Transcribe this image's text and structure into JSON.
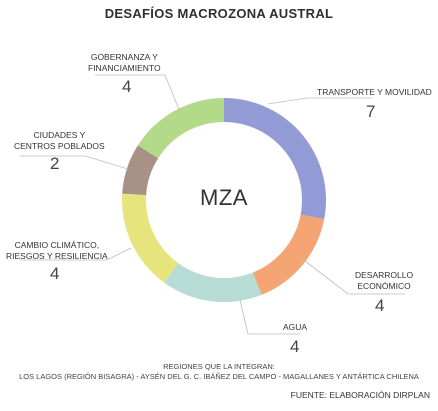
{
  "chart_data": {
    "type": "pie",
    "title": "DESAFÍOS MACROZONA AUSTRAL",
    "center_label": "MZA",
    "slices": [
      {
        "label": "TRANSPORTE Y MOVILIDAD",
        "value": 7,
        "color": "#929bd6"
      },
      {
        "label": "DESARROLLO ECONÓMICO",
        "value": 4,
        "color": "#f5a574"
      },
      {
        "label": "AGUA",
        "value": 4,
        "color": "#b7dcd6"
      },
      {
        "label": "CAMBIO CLIMÁTICO, RIESGOS Y RESILIENCIA",
        "value": 4,
        "color": "#e6e47d"
      },
      {
        "label": "CIUDADES Y CENTROS POBLADOS",
        "value": 2,
        "color": "#a89285"
      },
      {
        "label": "GOBERNANZA Y FINANCIAMIENTO",
        "value": 4,
        "color": "#b3da88"
      }
    ]
  },
  "labels": {
    "transporte": "TRANSPORTE Y MOVILIDAD",
    "desarrollo": "DESARROLLO\nECONÓMICO",
    "agua": "AGUA",
    "cambio": "CAMBIO CLIMÁTICO,\nRIESGOS Y RESILIENCIA",
    "ciudades": "CIUDADES Y\nCENTROS POBLADOS",
    "gobernanza": "GOBERNANZA Y\nFINANCIAMIENTO"
  },
  "values": {
    "transporte": "7",
    "desarrollo": "4",
    "agua": "4",
    "cambio": "4",
    "ciudades": "2",
    "gobernanza": "4"
  },
  "footer": {
    "regions_title": "REGIONES QUE LA INTEGRAN:",
    "regions_list": "LOS LAGOS (REGIÓN BISAGRA) - AYSÉN DEL G. C. IBÁÑEZ DEL CAMPO - MAGALLANES Y ANTÁRTICA CHILENA",
    "source": "FUENTE: ELABORACIÓN DIRPLAN"
  }
}
